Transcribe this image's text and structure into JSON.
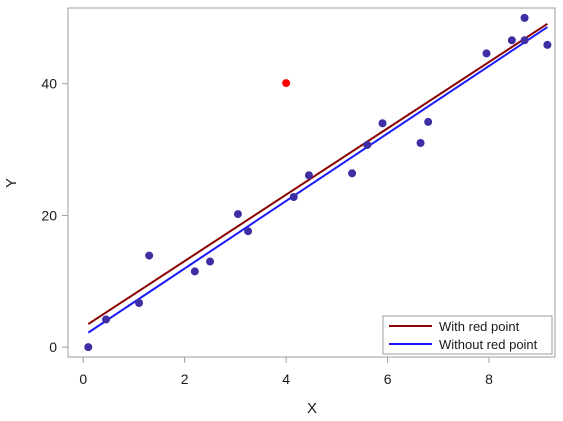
{
  "chart_data": {
    "type": "scatter",
    "xlabel": "X",
    "ylabel": "Y",
    "xlim": [
      -0.3,
      9.3
    ],
    "ylim": [
      -1.5,
      51.5
    ],
    "x_ticks": [
      0,
      2,
      4,
      6,
      8
    ],
    "y_ticks": [
      0,
      20,
      40
    ],
    "grid": false,
    "legend_position": "bottom-right",
    "series": [
      {
        "kind": "points",
        "color": "#3d2fa3",
        "x": [
          0.1,
          0.45,
          1.1,
          1.3,
          2.2,
          2.5,
          3.05,
          3.25,
          4.15,
          4.45,
          5.3,
          5.6,
          5.9,
          6.65,
          6.8,
          7.95,
          8.45,
          8.7,
          8.7,
          9.15
        ],
        "y": [
          0,
          4.2,
          6.7,
          13.9,
          11.5,
          13,
          20.2,
          17.6,
          22.8,
          26.1,
          26.4,
          30.7,
          34,
          31,
          34.2,
          44.6,
          46.6,
          46.6,
          50,
          45.9
        ]
      },
      {
        "kind": "points",
        "color": "#ff0000",
        "x": [
          4.0
        ],
        "y": [
          40.1
        ]
      },
      {
        "kind": "line",
        "name": "With red point",
        "color": "#8b0000",
        "x": [
          0.1,
          9.15
        ],
        "y": [
          3.5,
          49.1
        ]
      },
      {
        "kind": "line",
        "name": "Without red point",
        "color": "#1a1aff",
        "x": [
          0.1,
          9.15
        ],
        "y": [
          2.2,
          48.6
        ]
      }
    ]
  }
}
